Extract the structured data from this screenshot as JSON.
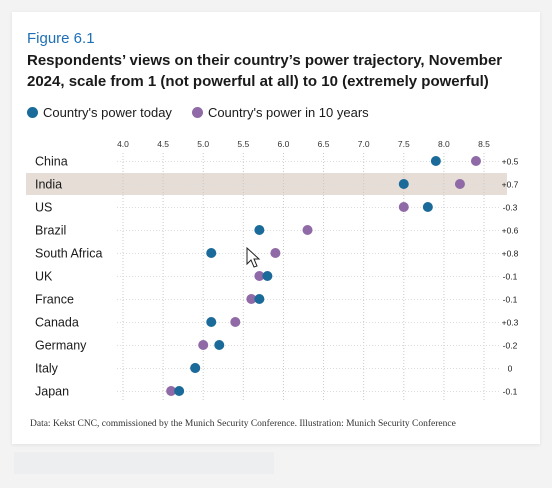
{
  "figure_label": "Figure 6.1",
  "title": "Respondents’ views on their country’s power trajectory, November 2024, scale from 1 (not powerful at all) to 10 (extremely powerful)",
  "source": "Data: Kekst CNC, commissioned by the Munich Security Conference. Illustration: Munich Security Conference",
  "colors": {
    "today": "#1a6b9a",
    "future": "#8f6aa6",
    "highlight": "#e5ddd6",
    "grid": "#c9c9c9"
  },
  "chart_data": {
    "type": "scatter",
    "title": "Respondents’ views on their country’s power trajectory, November 2024, scale from 1 (not powerful at all) to 10 (extremely powerful)",
    "xlim": [
      3.9,
      8.7
    ],
    "x_ticks": [
      "4.0",
      "4.5",
      "5.0",
      "5.5",
      "6.0",
      "6.5",
      "7.0",
      "7.5",
      "8.0",
      "8.5"
    ],
    "x_tick_values": [
      4.0,
      4.5,
      5.0,
      5.5,
      6.0,
      6.5,
      7.0,
      7.5,
      8.0,
      8.5
    ],
    "grid": true,
    "legend_position": "top-left",
    "highlighted_category": "India",
    "categories": [
      "China",
      "India",
      "US",
      "Brazil",
      "South Africa",
      "UK",
      "France",
      "Canada",
      "Germany",
      "Italy",
      "Japan"
    ],
    "series": [
      {
        "name": "Country's power today",
        "values": [
          7.9,
          7.5,
          7.8,
          5.7,
          5.1,
          5.8,
          5.7,
          5.1,
          5.2,
          4.9,
          4.7
        ]
      },
      {
        "name": "Country's power in 10 years",
        "values": [
          8.4,
          8.2,
          7.5,
          6.3,
          5.9,
          5.7,
          5.6,
          5.4,
          5.0,
          4.9,
          4.6
        ]
      }
    ],
    "change_labels": [
      "+0.5",
      "+0.7",
      "-0.3",
      "+0.6",
      "+0.8",
      "-0.1",
      "-0.1",
      "+0.3",
      "-0.2",
      "0",
      "-0.1"
    ]
  }
}
